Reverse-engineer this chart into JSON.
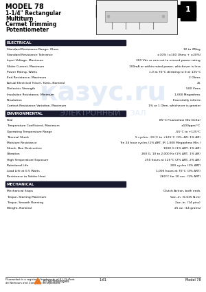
{
  "title": "MODEL 78",
  "subtitle_lines": [
    "1-1/4\" Rectangular",
    "Multiturn",
    "Cermet Trimming",
    "Potentiometer"
  ],
  "page_number": "1",
  "section_electrical": "ELECTRICAL",
  "electrical_rows": [
    [
      "Standard Resistance Range, Ohms",
      "10 to 2Meg"
    ],
    [
      "Standard Resistance Tolerance",
      "±10% (±100 Ohms + ±20%)"
    ],
    [
      "Input Voltage, Maximum",
      "300 Vdc or rms not to exceed power rating"
    ],
    [
      "Slider Current, Maximum",
      "100mA or within rated power, whichever is less"
    ],
    [
      "Power Rating, Watts",
      "1.0 at 70°C derating to 0 at 125°C"
    ],
    [
      "End Resistance, Maximum",
      "2 Ohms"
    ],
    [
      "Actual Electrical Travel, Turns, Nominal",
      "25"
    ],
    [
      "Dielectric Strength",
      "500 Vrms"
    ],
    [
      "Insulation Resistance, Minimum",
      "1,000 Megaohms"
    ],
    [
      "Resolution",
      "Essentially infinite"
    ],
    [
      "Contact Resistance Variation, Maximum",
      "1% or 1 Ohm, whichever is greater"
    ]
  ],
  "section_environmental": "ENVIRONMENTAL",
  "environmental_rows": [
    [
      "Seal",
      "85°C Fluoroelast (No Delta)"
    ],
    [
      "Temperature Coefficient, Maximum",
      "±100ppm/°C"
    ],
    [
      "Operating Temperature Range",
      "-55°C to +125°C"
    ],
    [
      "Thermal Shock",
      "5 cycles, -55°C to +125°C (1%, ΔR, 1% ΔR)"
    ],
    [
      "Moisture Resistance",
      "Ten 24 hour cycles (1% ΔRT, IR 1,000 Megaohms Min.)"
    ],
    [
      "Shock, Non Destructive",
      "1000 G (1% ΔRT, 1% ΔR)"
    ],
    [
      "Vibration",
      "260 G, 10 to 2,000 Hz (1% ΔRT, 1% ΔR)"
    ],
    [
      "High Temperature Exposure",
      "250 hours at 125°C (2% ΔRT, 2% ΔR)"
    ],
    [
      "Rotational Life",
      "200 cycles (2% ΔRT)"
    ],
    [
      "Load Life at 0.5 Watts",
      "1,000 hours at 70°C (3% ΔRT)"
    ],
    [
      "Resistance to Solder Heat",
      "260°C for 10 sec. (1% ΔRT)"
    ]
  ],
  "section_mechanical": "MECHANICAL",
  "mechanical_rows": [
    [
      "Mechanical Stops",
      "Clutch Action, both ends"
    ],
    [
      "Torque, Starting Maximum",
      "5oz.-in. (6.035 N-m)"
    ],
    [
      "Torque, Smooth Running",
      "2oz.-in. (14 pins)"
    ],
    [
      "Weight, Nominal",
      "25 oz. (14 grams)"
    ]
  ],
  "footer_left": "Fluoroelast is a registered trademark of E.I. DuPont\nde Nemours and Company Incorporated.",
  "footer_center": "1-61",
  "footer_right": "Model 78",
  "footer_logo": "BI technologies",
  "bg_color": "#ffffff",
  "header_bar_color": "#000000",
  "section_bar_color": "#1a1a2e",
  "section_text_color": "#ffffff",
  "body_text_color": "#000000",
  "watermark_color": "#b0c8e8"
}
